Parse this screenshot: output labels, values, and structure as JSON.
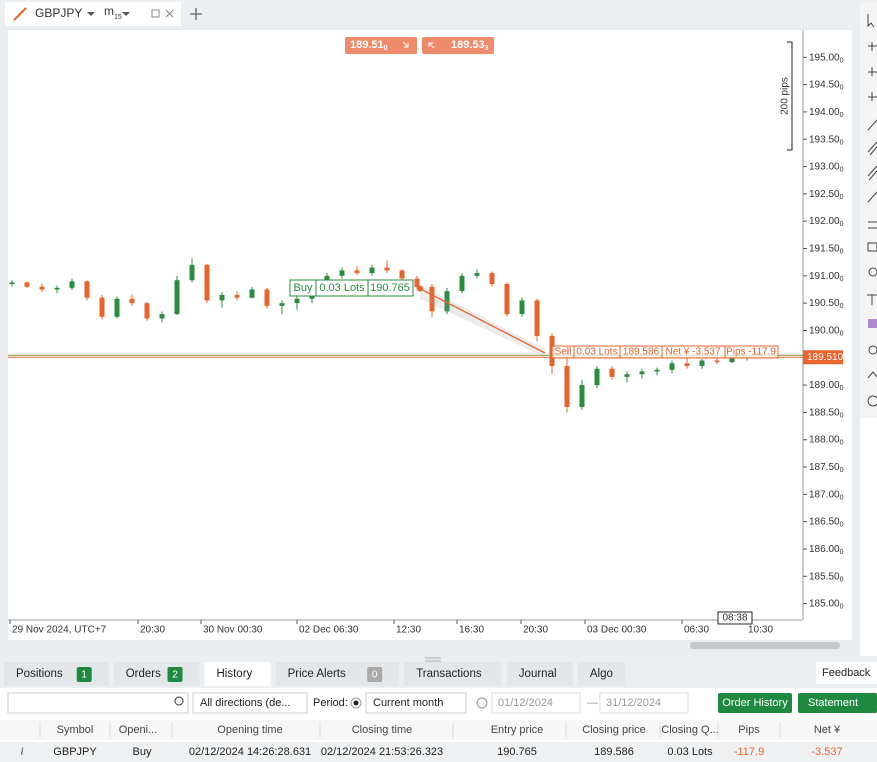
{
  "tab": {
    "symbol": "GBPJPY",
    "timeframe": "m",
    "timeframe_sub": "15"
  },
  "quotes": {
    "sell": {
      "price": "189.51",
      "pipette": "0"
    },
    "buy": {
      "price": "189.53",
      "pipette": "3"
    }
  },
  "chart_data": {
    "type": "candlestick",
    "up_color": "#2a8c3f",
    "down_color": "#e9642c",
    "open": [
      190.85,
      190.88,
      190.8,
      190.75,
      190.78,
      190.9,
      190.6,
      190.25,
      190.58,
      190.5,
      190.22,
      190.3,
      190.92,
      191.2,
      190.55,
      190.65,
      190.6,
      190.75,
      190.45,
      190.5,
      190.58,
      190.65,
      191.0,
      191.1,
      191.05,
      191.15,
      191.1,
      190.95,
      190.8,
      190.35,
      190.72,
      191.0,
      191.05,
      190.85,
      190.3,
      190.55,
      189.9,
      189.35,
      188.6,
      189.0,
      189.3,
      189.15,
      189.2,
      189.25,
      189.28,
      189.4,
      189.35,
      189.45,
      189.42,
      189.5
    ],
    "high": [
      190.92,
      190.9,
      190.86,
      190.82,
      190.95,
      190.92,
      190.65,
      190.62,
      190.66,
      190.52,
      190.35,
      191.0,
      191.32,
      191.22,
      190.7,
      190.72,
      190.8,
      190.78,
      190.55,
      190.62,
      190.7,
      191.05,
      191.15,
      191.18,
      191.2,
      191.28,
      191.12,
      191.0,
      190.85,
      190.78,
      191.05,
      191.12,
      191.08,
      190.88,
      190.6,
      190.58,
      189.95,
      189.7,
      189.1,
      189.35,
      189.35,
      189.25,
      189.3,
      189.32,
      189.45,
      189.5,
      189.48,
      189.52,
      189.55,
      189.55
    ],
    "low": [
      190.8,
      190.78,
      190.7,
      190.68,
      190.74,
      190.55,
      190.2,
      190.22,
      190.45,
      190.18,
      190.15,
      190.28,
      190.88,
      190.5,
      190.42,
      190.55,
      190.58,
      190.4,
      190.3,
      190.38,
      190.5,
      190.62,
      190.95,
      191.02,
      191.0,
      191.05,
      190.9,
      190.75,
      190.25,
      190.3,
      190.68,
      190.95,
      190.8,
      190.25,
      190.25,
      189.8,
      189.2,
      188.5,
      188.55,
      188.95,
      189.1,
      189.05,
      189.12,
      189.18,
      189.22,
      189.3,
      189.3,
      189.38,
      189.4,
      189.45
    ],
    "close": [
      190.88,
      190.8,
      190.75,
      190.78,
      190.9,
      190.6,
      190.25,
      190.58,
      190.5,
      190.22,
      190.3,
      190.92,
      191.2,
      190.55,
      190.65,
      190.6,
      190.75,
      190.45,
      190.5,
      190.58,
      190.65,
      191.0,
      191.1,
      191.05,
      191.15,
      191.1,
      190.95,
      190.8,
      190.35,
      190.72,
      191.0,
      191.05,
      190.85,
      190.3,
      190.55,
      189.9,
      189.35,
      188.6,
      189.0,
      189.3,
      189.15,
      189.2,
      189.25,
      189.28,
      189.4,
      189.35,
      189.45,
      189.42,
      189.5,
      189.51
    ],
    "ylim": [
      184.7,
      195.5
    ],
    "yticks": [
      {
        "value": 185,
        "label": "185.00"
      },
      {
        "value": 185.5,
        "label": "185.50"
      },
      {
        "value": 186,
        "label": "186.00"
      },
      {
        "value": 186.5,
        "label": "186.50"
      },
      {
        "value": 187,
        "label": "187.00"
      },
      {
        "value": 187.5,
        "label": "187.50"
      },
      {
        "value": 188,
        "label": "188.00"
      },
      {
        "value": 188.5,
        "label": "188.50"
      },
      {
        "value": 189,
        "label": "189.00"
      },
      {
        "value": 189.5,
        "label": "189.50"
      },
      {
        "value": 190,
        "label": "190.00"
      },
      {
        "value": 190.5,
        "label": "190.50"
      },
      {
        "value": 191,
        "label": "191.00"
      },
      {
        "value": 191.5,
        "label": "191.50"
      },
      {
        "value": 192,
        "label": "192.00"
      },
      {
        "value": 192.5,
        "label": "192.50"
      },
      {
        "value": 193,
        "label": "193.00"
      },
      {
        "value": 193.5,
        "label": "193.50"
      },
      {
        "value": 194,
        "label": "194.00"
      },
      {
        "value": 194.5,
        "label": "194.50"
      },
      {
        "value": 195,
        "label": "195.00"
      }
    ],
    "tick_pipette": "0",
    "current_price": {
      "value": 189.51,
      "label": "189.510"
    },
    "time_axis": [
      "29 Nov 2024, UTC+7",
      "20:30",
      "30 Nov 00:30",
      "02 Dec 06:30",
      "12:30",
      "16:30",
      "20:30",
      "03 Dec 00:30",
      "06:30",
      "10:30"
    ],
    "cursor_time": "08:38",
    "ruler": "200 pips",
    "trades": {
      "buy": {
        "side": "Buy",
        "lots": "0.03 Lots",
        "price": 190.765
      },
      "sell": {
        "side": "Sell",
        "lots": "0.03 Lots",
        "price": 189.586,
        "net": "Net ¥ -3.537",
        "pips": "Pips -117.9"
      }
    }
  },
  "panel": {
    "tabs": [
      {
        "label": "Positions",
        "count": "1"
      },
      {
        "label": "Orders",
        "count": "2"
      },
      {
        "label": "History"
      },
      {
        "label": "Price Alerts",
        "count": "0"
      },
      {
        "label": "Transactions"
      },
      {
        "label": "Journal"
      },
      {
        "label": "Algo"
      }
    ],
    "feedback": "Feedback",
    "filters": {
      "direction": "All directions (de...",
      "period_label": "Period:",
      "period": "Current month",
      "from": "01/12/2024",
      "dash": "—",
      "to": "31/12/2024",
      "order_history": "Order History",
      "statement": "Statement"
    },
    "table": {
      "headers": [
        "Symbol",
        "Openi...",
        "Opening time",
        "Closing time",
        "Entry price",
        "Closing price",
        "Closing Q...",
        "Pips",
        "Net ¥"
      ],
      "rows": [
        [
          "i",
          "GBPJPY",
          "Buy",
          "02/12/2024 14:26:28.631",
          "02/12/2024 21:53:26.323",
          "190.765",
          "189.586",
          "0.03 Lots",
          "-117.9",
          "-3.537"
        ]
      ]
    }
  }
}
